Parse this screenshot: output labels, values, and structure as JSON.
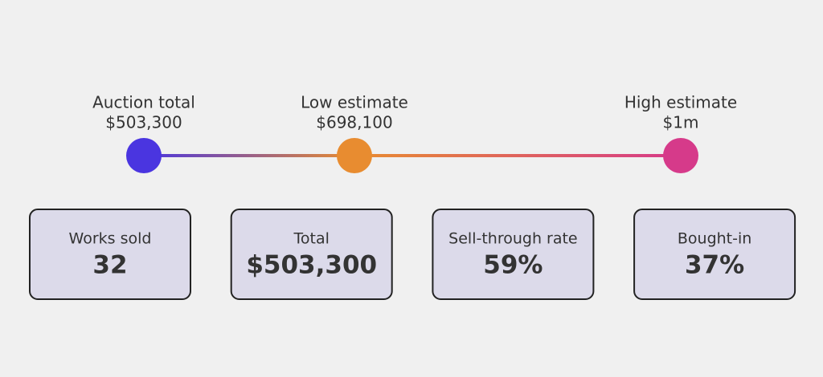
{
  "chart_data": {
    "type": "number-line",
    "points": [
      {
        "name": "Auction total",
        "value": 503300,
        "value_label": "$503,300",
        "color": "#4a35e0"
      },
      {
        "name": "Low estimate",
        "value": 698100,
        "value_label": "$698,100",
        "color": "#e88c30"
      },
      {
        "name": "High estimate",
        "value": 1000000,
        "value_label": "$1m",
        "color": "#d63a8a"
      }
    ]
  },
  "stats": [
    {
      "label": "Works sold",
      "value": "32"
    },
    {
      "label": "Total",
      "value": "$503,300"
    },
    {
      "label": "Sell-through rate",
      "value": "59%"
    },
    {
      "label": "Bought-in",
      "value": "37%"
    }
  ]
}
